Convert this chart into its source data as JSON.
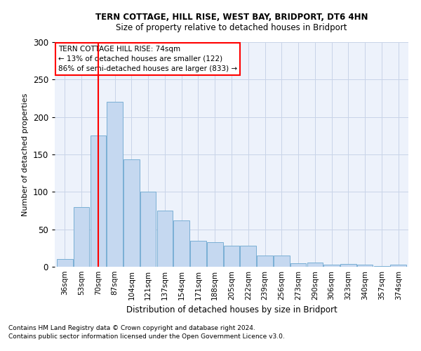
{
  "title1": "TERN COTTAGE, HILL RISE, WEST BAY, BRIDPORT, DT6 4HN",
  "title2": "Size of property relative to detached houses in Bridport",
  "xlabel": "Distribution of detached houses by size in Bridport",
  "ylabel": "Number of detached properties",
  "footnote1": "Contains HM Land Registry data © Crown copyright and database right 2024.",
  "footnote2": "Contains public sector information licensed under the Open Government Licence v3.0.",
  "categories": [
    "36sqm",
    "53sqm",
    "70sqm",
    "87sqm",
    "104sqm",
    "121sqm",
    "137sqm",
    "154sqm",
    "171sqm",
    "188sqm",
    "205sqm",
    "222sqm",
    "239sqm",
    "256sqm",
    "273sqm",
    "290sqm",
    "306sqm",
    "323sqm",
    "340sqm",
    "357sqm",
    "374sqm"
  ],
  "values": [
    10,
    80,
    175,
    220,
    143,
    100,
    75,
    62,
    35,
    33,
    28,
    28,
    15,
    15,
    5,
    6,
    3,
    4,
    3,
    1,
    3
  ],
  "bar_color": "#c5d8f0",
  "bar_edge_color": "#7aafd4",
  "redline_index": 2,
  "redline_label": "TERN COTTAGE HILL RISE: 74sqm",
  "pct_smaller": "13%",
  "n_smaller": 122,
  "pct_larger": "86%",
  "n_larger": 833,
  "ylim": [
    0,
    300
  ],
  "yticks": [
    0,
    50,
    100,
    150,
    200,
    250,
    300
  ],
  "annotation_box_color": "white",
  "annotation_box_edge": "red",
  "bg_color": "#edf2fb",
  "grid_color": "#c8d4e8"
}
